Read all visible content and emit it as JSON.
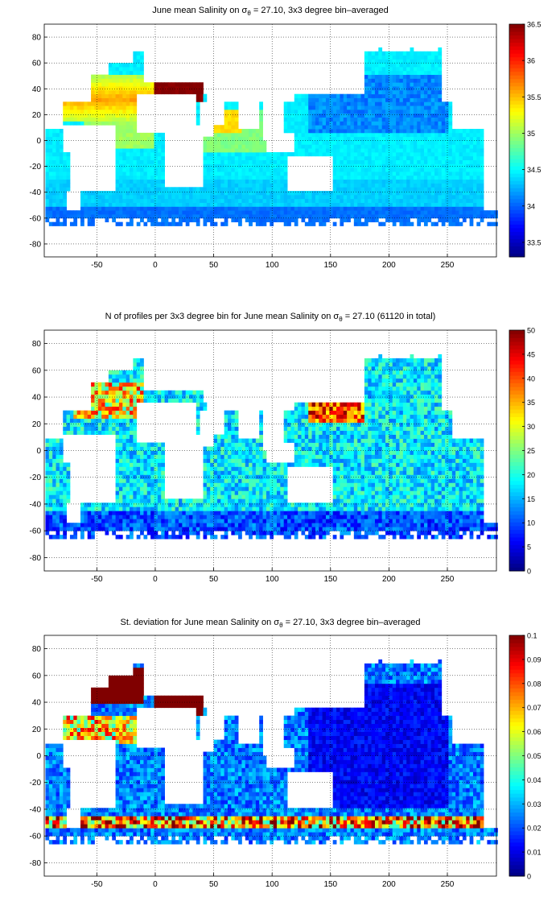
{
  "chart_data": [
    {
      "type": "heatmap",
      "title": "June mean Salinity on σθ = 27.10, 3x3 degree bin–averaged",
      "title_parts": {
        "before": "June mean Salinity on ",
        "sigma": "σ",
        "sub": "θ",
        "after": " = 27.10, 3x3 degree bin–averaged"
      },
      "xlim": [
        -95,
        292
      ],
      "ylim": [
        -90,
        90
      ],
      "xticks": [
        -50,
        0,
        50,
        100,
        150,
        200,
        250
      ],
      "yticks": [
        -80,
        -60,
        -40,
        -20,
        0,
        20,
        40,
        60,
        80
      ],
      "grid": true,
      "colorbar": {
        "min": 33.3,
        "max": 36.5,
        "ticks": [
          33.5,
          34,
          34.5,
          35,
          35.5,
          36,
          36.5
        ],
        "colormap": "jet"
      },
      "field": "salinity"
    },
    {
      "type": "heatmap",
      "title": "N of profiles per 3x3 degree bin for June mean Salinity on σθ = 27.10 (61120 in total)",
      "title_parts": {
        "before": "N of profiles per 3x3 degree bin for June mean Salinity on ",
        "sigma": "σ",
        "sub": "θ",
        "after": " = 27.10 (61120 in total)"
      },
      "xlim": [
        -95,
        292
      ],
      "ylim": [
        -90,
        90
      ],
      "xticks": [
        -50,
        0,
        50,
        100,
        150,
        200,
        250
      ],
      "yticks": [
        -80,
        -60,
        -40,
        -20,
        0,
        20,
        40,
        60,
        80
      ],
      "grid": true,
      "colorbar": {
        "min": 0,
        "max": 50,
        "ticks": [
          0,
          5,
          10,
          15,
          20,
          25,
          30,
          35,
          40,
          45,
          50
        ],
        "colormap": "jet"
      },
      "field": "count"
    },
    {
      "type": "heatmap",
      "title": "St. deviation for June mean Salinity on σθ = 27.10, 3x3 degree bin–averaged",
      "title_parts": {
        "before": "St. deviation for June mean Salinity on ",
        "sigma": "σ",
        "sub": "θ",
        "after": " = 27.10, 3x3 degree bin–averaged"
      },
      "xlim": [
        -95,
        292
      ],
      "ylim": [
        -90,
        90
      ],
      "xticks": [
        -50,
        0,
        50,
        100,
        150,
        200,
        250
      ],
      "yticks": [
        -80,
        -60,
        -40,
        -20,
        0,
        20,
        40,
        60,
        80
      ],
      "grid": true,
      "colorbar": {
        "min": 0,
        "max": 0.1,
        "ticks": [
          0,
          0.01,
          0.02,
          0.03,
          0.04,
          0.05,
          0.06,
          0.07,
          0.08,
          0.09,
          0.1
        ],
        "colormap": "jet"
      },
      "field": "stdev"
    }
  ]
}
